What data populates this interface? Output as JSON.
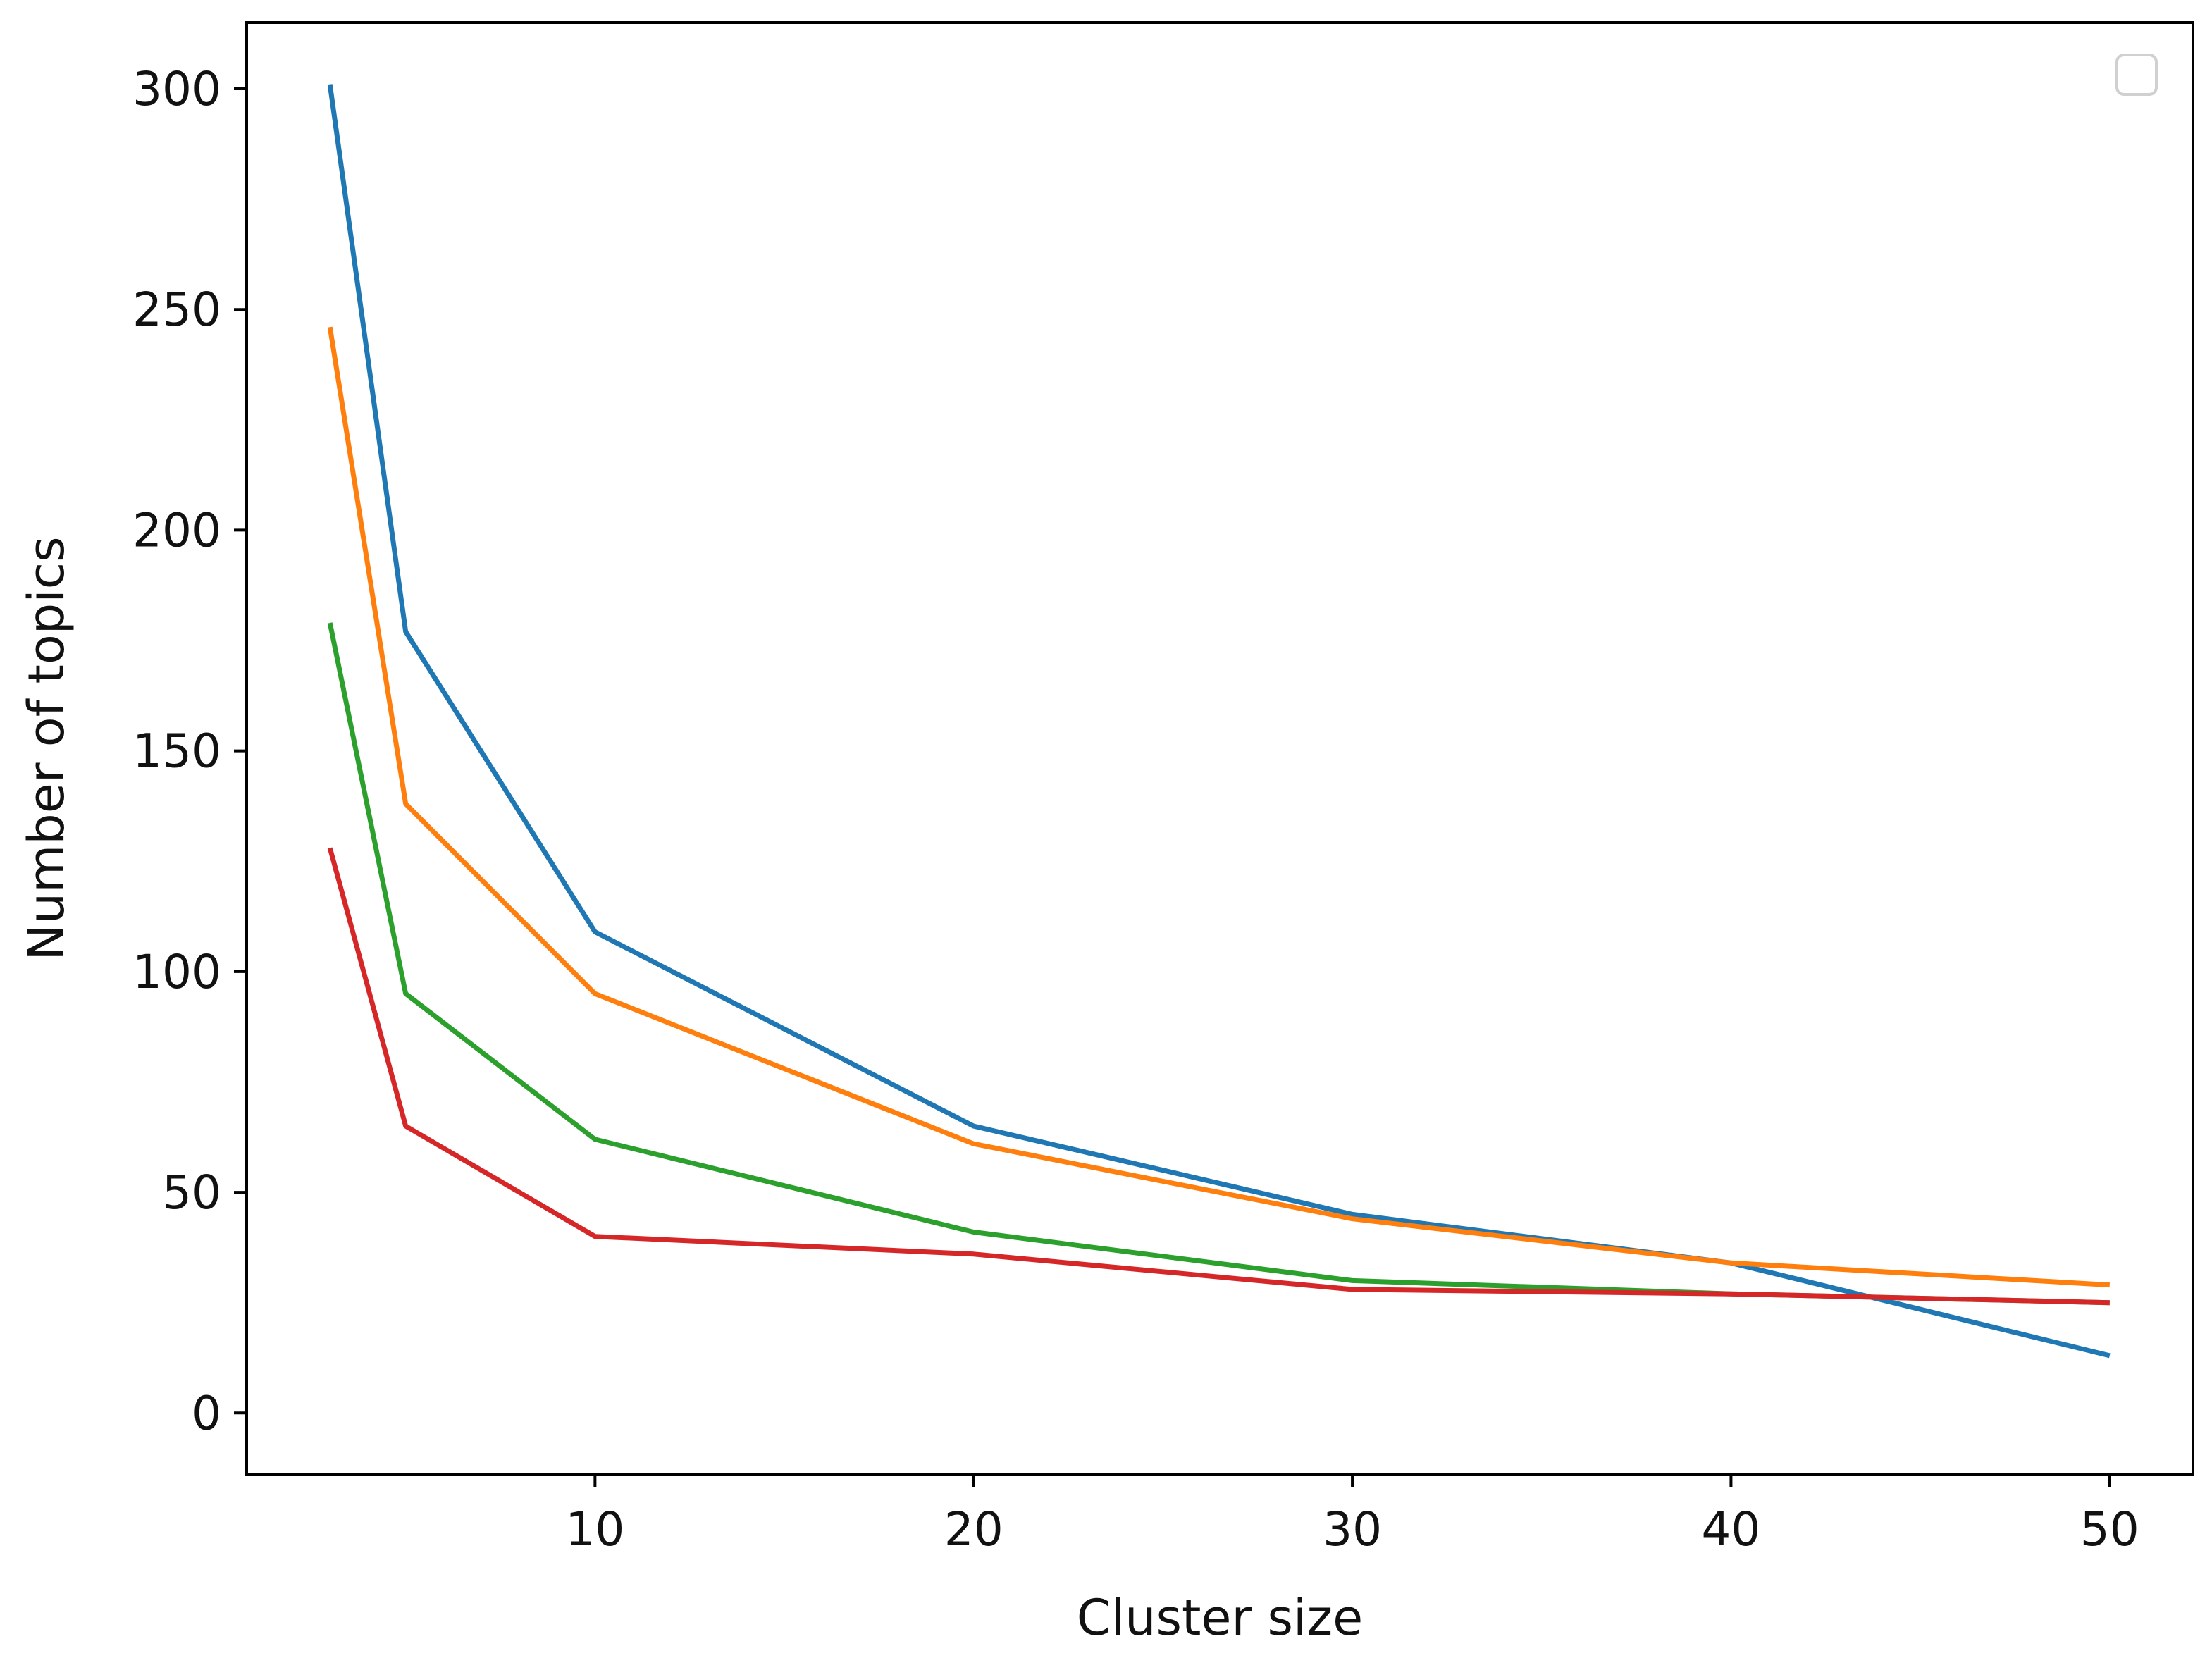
{
  "chart_data": {
    "type": "line",
    "title": "",
    "xlabel": "Cluster size",
    "ylabel": "Number of topics",
    "xlim": [
      0.8,
      52.2
    ],
    "ylim": [
      -14,
      315
    ],
    "xticks": [
      10,
      20,
      30,
      40,
      50
    ],
    "yticks": [
      0,
      50,
      100,
      150,
      200,
      250,
      300
    ],
    "grid": false,
    "legend": {
      "placement": "top-right",
      "entries": []
    },
    "series": [
      {
        "color": "#1f77b4",
        "x": [
          3,
          5,
          10,
          20,
          30,
          40,
          50
        ],
        "y": [
          301,
          177,
          109,
          65,
          45,
          34,
          13
        ]
      },
      {
        "color": "#ff7f0e",
        "x": [
          3,
          5,
          10,
          20,
          30,
          40,
          50
        ],
        "y": [
          246,
          138,
          95,
          61,
          44,
          34,
          29
        ]
      },
      {
        "color": "#2ca02c",
        "x": [
          3,
          5,
          10,
          20,
          30,
          40,
          50
        ],
        "y": [
          179,
          95,
          62,
          41,
          30,
          27,
          25
        ]
      },
      {
        "color": "#d62728",
        "x": [
          3,
          5,
          10,
          20,
          30,
          40,
          50
        ],
        "y": [
          128,
          65,
          40,
          36,
          28,
          27,
          25
        ]
      }
    ]
  }
}
